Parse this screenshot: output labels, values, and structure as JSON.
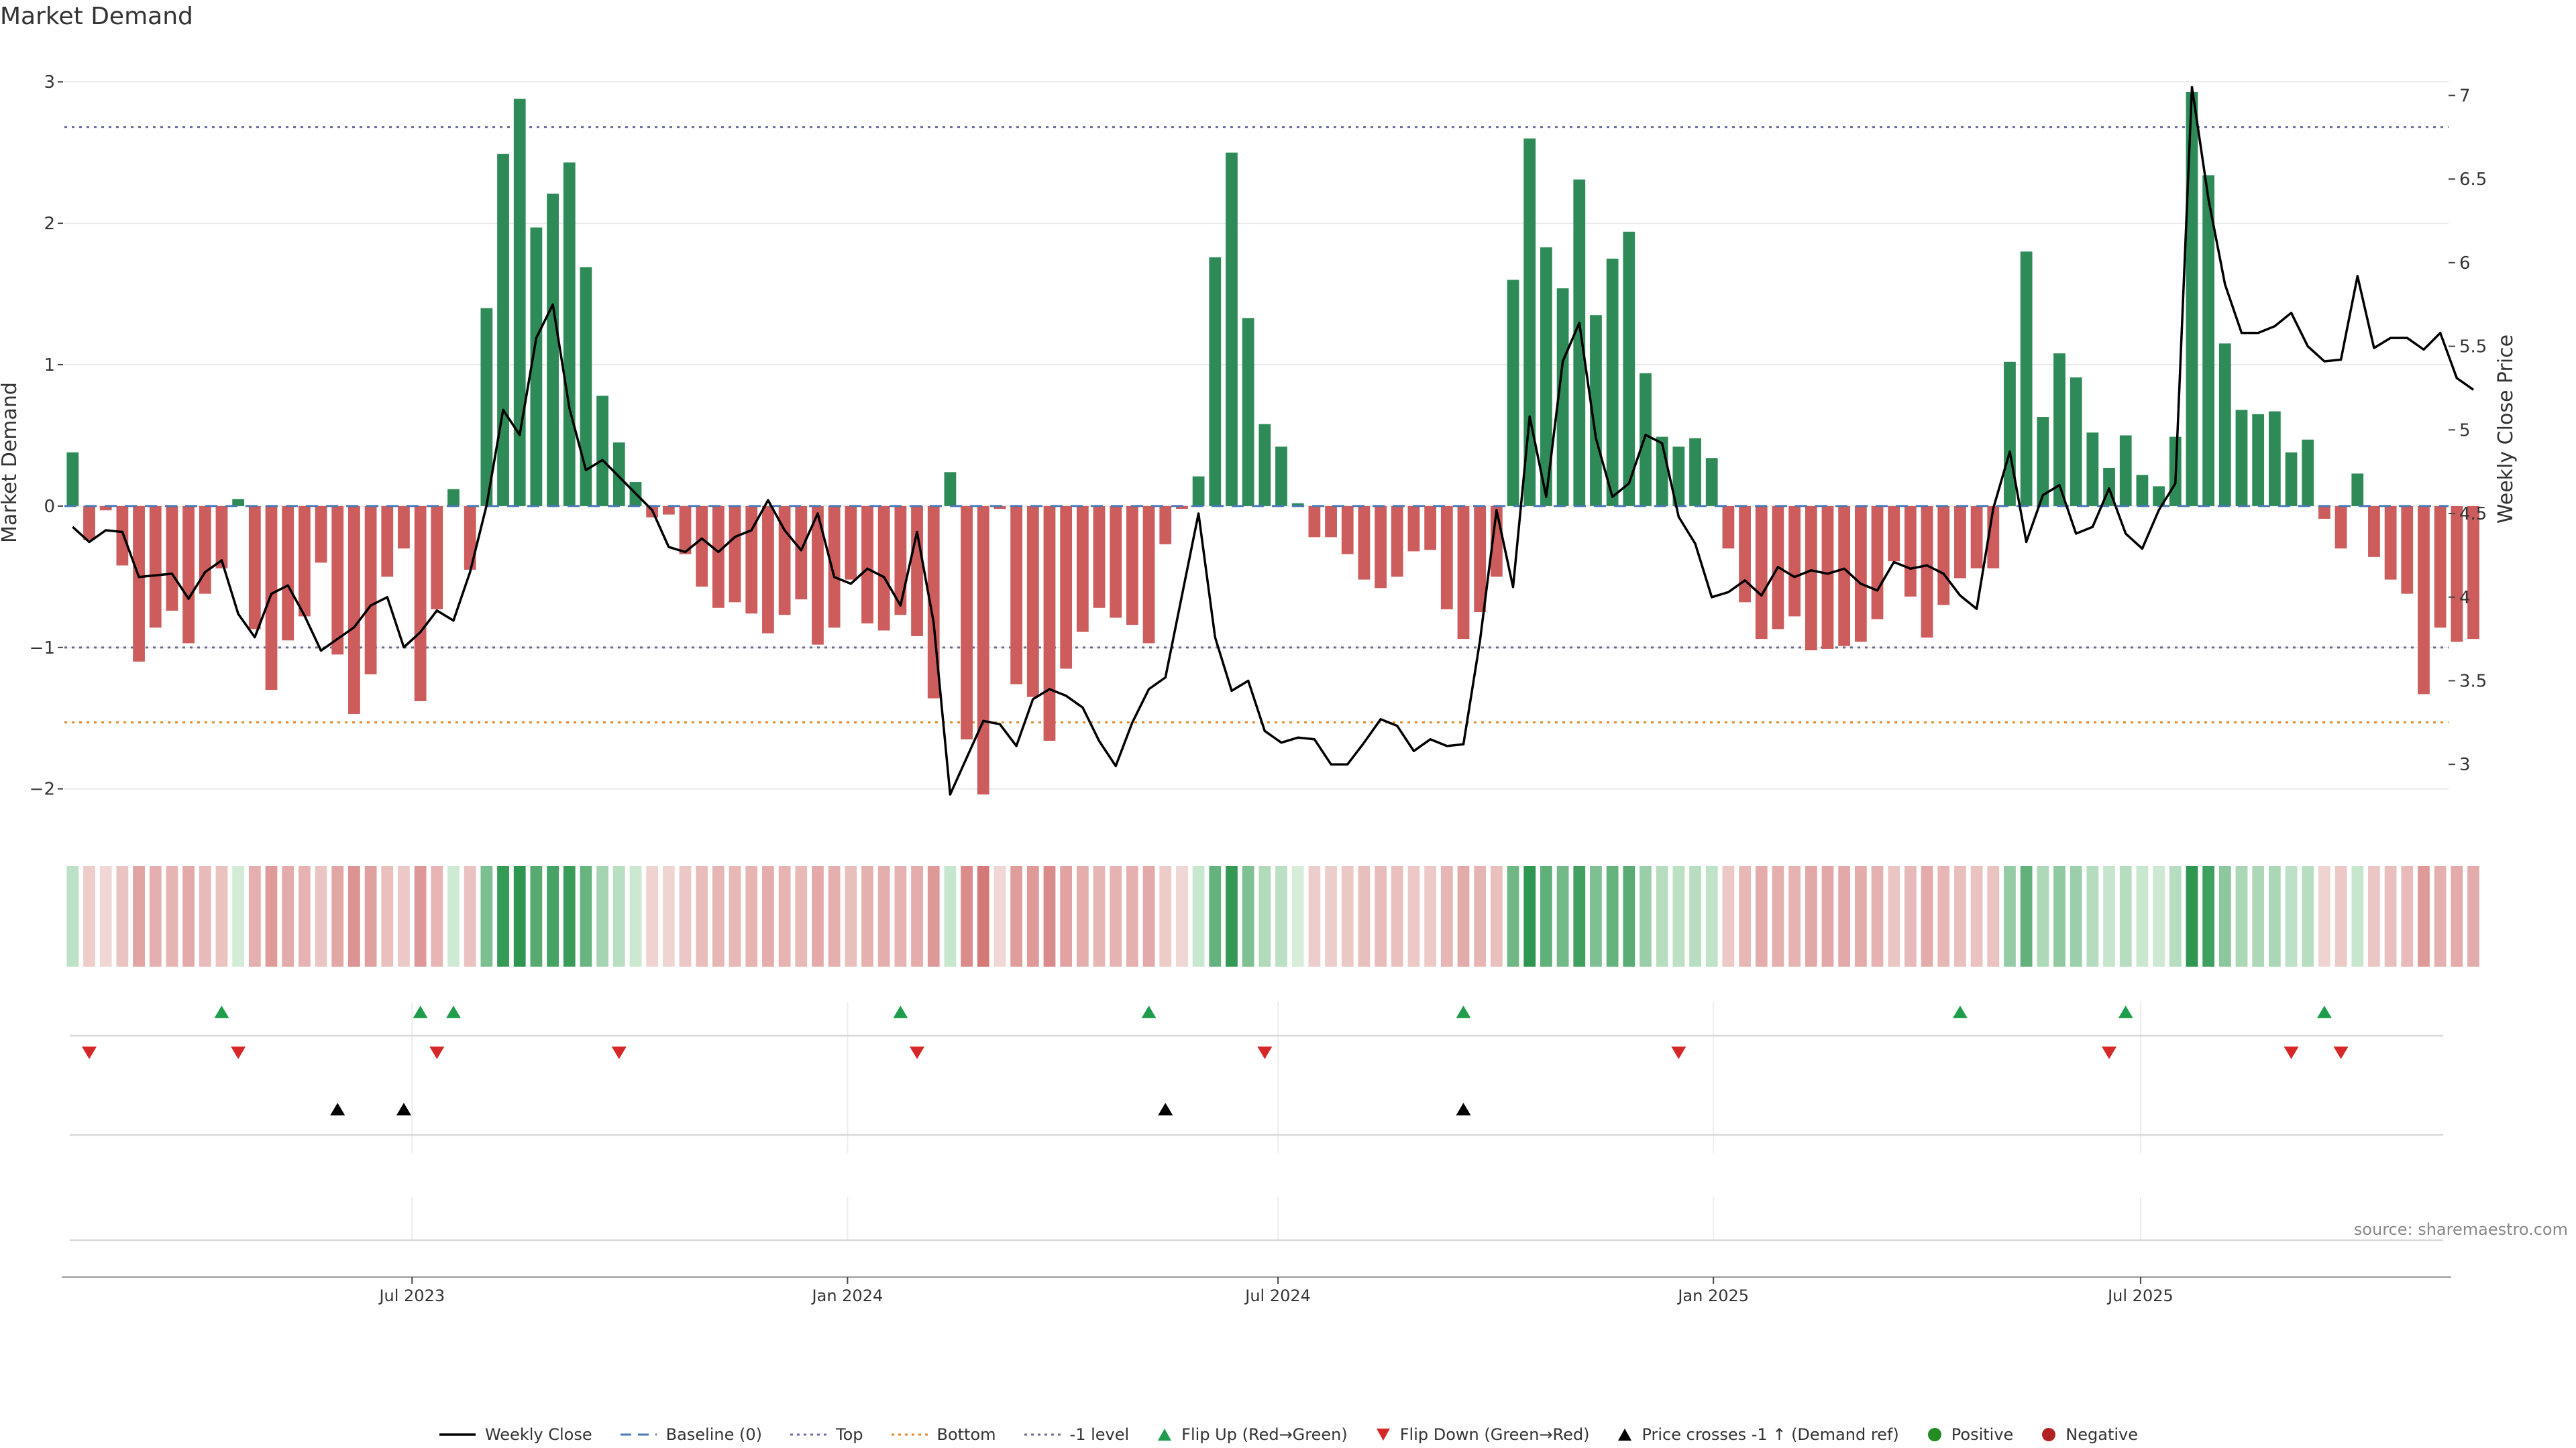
{
  "chart_data": {
    "type": "bar",
    "title": "Market Demand",
    "ylabel": "Market Demand",
    "y2label": "Weekly Close Price",
    "source": "source: sharemaestro.com",
    "ylim": [
      -2.3,
      3.2
    ],
    "y2lim": [
      2.6,
      7.25
    ],
    "yticks": [
      -2,
      -1,
      0,
      1,
      2,
      3
    ],
    "ytick_labels": [
      "−2",
      "−1",
      "0",
      "1",
      "2",
      "3"
    ],
    "y2ticks": [
      3,
      3.5,
      4,
      4.5,
      5,
      5.5,
      6,
      6.5,
      7
    ],
    "y2tick_labels": [
      "3",
      "3.5",
      "4",
      "4.5",
      "5",
      "5.5",
      "6",
      "6.5",
      "7"
    ],
    "x_start": "2023-01-09",
    "week_count": 144,
    "xticks": [
      {
        "label": "Jul 2023",
        "week": 21
      },
      {
        "label": "Jan 2024",
        "week": 47.3
      },
      {
        "label": "Jul 2024",
        "week": 73.3
      },
      {
        "label": "Jan 2025",
        "week": 99.6
      },
      {
        "label": "Jul 2025",
        "week": 125.4
      }
    ],
    "reference_lines": [
      {
        "name": "Top",
        "value": 2.68,
        "color": "#6b6ba8",
        "style": "dotted"
      },
      {
        "name": "-1 level",
        "value": -1.0,
        "color": "#6b6b8a",
        "style": "dotted"
      },
      {
        "name": "Bottom",
        "value": -1.53,
        "color": "#e08a2e",
        "style": "dotted"
      },
      {
        "name": "Baseline (0)",
        "value": 0,
        "color": "#4a78b5",
        "style": "dashed"
      }
    ],
    "series": [
      {
        "name": "Market Demand",
        "axis": "left",
        "values": [
          0.38,
          -0.24,
          -0.03,
          -0.42,
          -1.1,
          -0.86,
          -0.74,
          -0.97,
          -0.62,
          -0.44,
          0.05,
          -0.87,
          -1.3,
          -0.95,
          -0.78,
          -0.4,
          -1.05,
          -1.47,
          -1.19,
          -0.5,
          -0.3,
          -1.38,
          -0.73,
          0.12,
          -0.45,
          1.4,
          2.49,
          2.88,
          1.97,
          2.21,
          2.43,
          1.69,
          0.78,
          0.45,
          0.17,
          -0.08,
          -0.06,
          -0.34,
          -0.57,
          -0.72,
          -0.68,
          -0.76,
          -0.9,
          -0.77,
          -0.66,
          -0.98,
          -0.86,
          -0.52,
          -0.83,
          -0.88,
          -0.77,
          -0.92,
          -1.36,
          0.24,
          -1.65,
          -2.04,
          -0.02,
          -1.26,
          -1.35,
          -1.66,
          -1.15,
          -0.89,
          -0.72,
          -0.79,
          -0.84,
          -0.97,
          -0.27,
          -0.02,
          0.21,
          1.76,
          2.5,
          1.33,
          0.58,
          0.42,
          0.02,
          -0.22,
          -0.22,
          -0.34,
          -0.52,
          -0.58,
          -0.5,
          -0.32,
          -0.31,
          -0.73,
          -0.94,
          -0.75,
          -0.5,
          1.6,
          2.6,
          1.83,
          1.54,
          2.31,
          1.35,
          1.75,
          1.94,
          0.94,
          0.49,
          0.42,
          0.48,
          0.34,
          -0.3,
          -0.68,
          -0.94,
          -0.87,
          -0.78,
          -1.02,
          -1.01,
          -0.99,
          -0.96,
          -0.8,
          -0.39,
          -0.64,
          -0.93,
          -0.7,
          -0.51,
          -0.44,
          -0.44,
          1.02,
          1.8,
          0.63,
          1.08,
          0.91,
          0.52,
          0.27,
          0.5,
          0.22,
          0.14,
          0.49,
          2.93,
          2.34,
          1.15,
          0.68,
          0.65,
          0.67,
          0.38,
          0.47,
          -0.09,
          -0.3,
          0.23,
          -0.36,
          -0.52,
          -0.62,
          -1.33,
          -0.86,
          -0.96,
          -0.94
        ]
      },
      {
        "name": "Weekly Close",
        "axis": "right",
        "values": [
          4.42,
          4.33,
          4.4,
          4.39,
          4.12,
          4.13,
          4.14,
          3.99,
          4.15,
          4.22,
          3.9,
          3.76,
          4.02,
          4.07,
          3.89,
          3.68,
          3.75,
          3.82,
          3.95,
          4.0,
          3.7,
          3.79,
          3.92,
          3.86,
          4.15,
          4.55,
          5.12,
          4.97,
          5.55,
          5.75,
          5.13,
          4.76,
          4.82,
          4.72,
          4.62,
          4.52,
          4.3,
          4.27,
          4.35,
          4.27,
          4.36,
          4.4,
          4.58,
          4.4,
          4.28,
          4.5,
          4.12,
          4.08,
          4.17,
          4.12,
          3.95,
          4.39,
          3.85,
          2.82,
          3.04,
          3.26,
          3.24,
          3.11,
          3.39,
          3.45,
          3.41,
          3.34,
          3.14,
          2.99,
          3.25,
          3.45,
          3.52,
          4.01,
          4.5,
          3.76,
          3.44,
          3.5,
          3.2,
          3.13,
          3.16,
          3.15,
          3.0,
          3.0,
          3.13,
          3.27,
          3.23,
          3.08,
          3.15,
          3.11,
          3.12,
          3.74,
          4.52,
          4.06,
          5.08,
          4.6,
          5.41,
          5.64,
          4.95,
          4.6,
          4.68,
          4.97,
          4.92,
          4.48,
          4.32,
          4.0,
          4.03,
          4.1,
          4.01,
          4.18,
          4.12,
          4.16,
          4.14,
          4.17,
          4.08,
          4.04,
          4.21,
          4.17,
          4.19,
          4.14,
          4.01,
          3.93,
          4.53,
          4.87,
          4.33,
          4.61,
          4.67,
          4.38,
          4.42,
          4.65,
          4.38,
          4.29,
          4.52,
          4.68,
          7.05,
          6.38,
          5.87,
          5.58,
          5.58,
          5.62,
          5.7,
          5.5,
          5.41,
          5.42,
          5.92,
          5.49,
          5.55,
          5.55,
          5.48,
          5.58,
          5.31,
          5.24
        ]
      }
    ],
    "colors": {
      "positive_bar": "#2e8b57",
      "negative_bar": "#cd5c5c",
      "price_line": "#000000",
      "flip_up": "#1f9d4c",
      "flip_down": "#d62828",
      "price_cross": "#000000",
      "positive_dot": "#228b22",
      "negative_dot": "#b22222"
    },
    "events": {
      "flip_up_weeks": [
        9,
        21,
        23,
        50,
        65,
        84,
        114,
        124,
        136
      ],
      "flip_down_weeks": [
        1,
        10,
        22,
        33,
        51,
        72,
        97,
        123,
        134,
        137
      ],
      "price_cross_weeks": [
        16,
        20,
        66,
        84
      ]
    },
    "legend": [
      {
        "key": "weekly-close",
        "label": "Weekly Close",
        "kind": "line-solid",
        "color": "#000000"
      },
      {
        "key": "baseline",
        "label": "Baseline (0)",
        "kind": "line-dashed",
        "color": "#4a78b5"
      },
      {
        "key": "top",
        "label": "Top",
        "kind": "line-dotted",
        "color": "#6b6ba8"
      },
      {
        "key": "bottom",
        "label": "Bottom",
        "kind": "line-dotted",
        "color": "#e08a2e"
      },
      {
        "key": "minus-one-level",
        "label": "-1 level",
        "kind": "line-dotted",
        "color": "#6b6b8a"
      },
      {
        "key": "flip-up",
        "label": "Flip Up (Red→Green)",
        "kind": "triangle-up",
        "color": "#1f9d4c"
      },
      {
        "key": "flip-down",
        "label": "Flip Down (Green→Red)",
        "kind": "triangle-down",
        "color": "#d62828"
      },
      {
        "key": "price-cross",
        "label": "Price crosses -1 ↑ (Demand ref)",
        "kind": "triangle-up",
        "color": "#000000"
      },
      {
        "key": "positive",
        "label": "Positive",
        "kind": "dot",
        "color": "#228b22"
      },
      {
        "key": "negative",
        "label": "Negative",
        "kind": "dot",
        "color": "#b22222"
      }
    ]
  }
}
